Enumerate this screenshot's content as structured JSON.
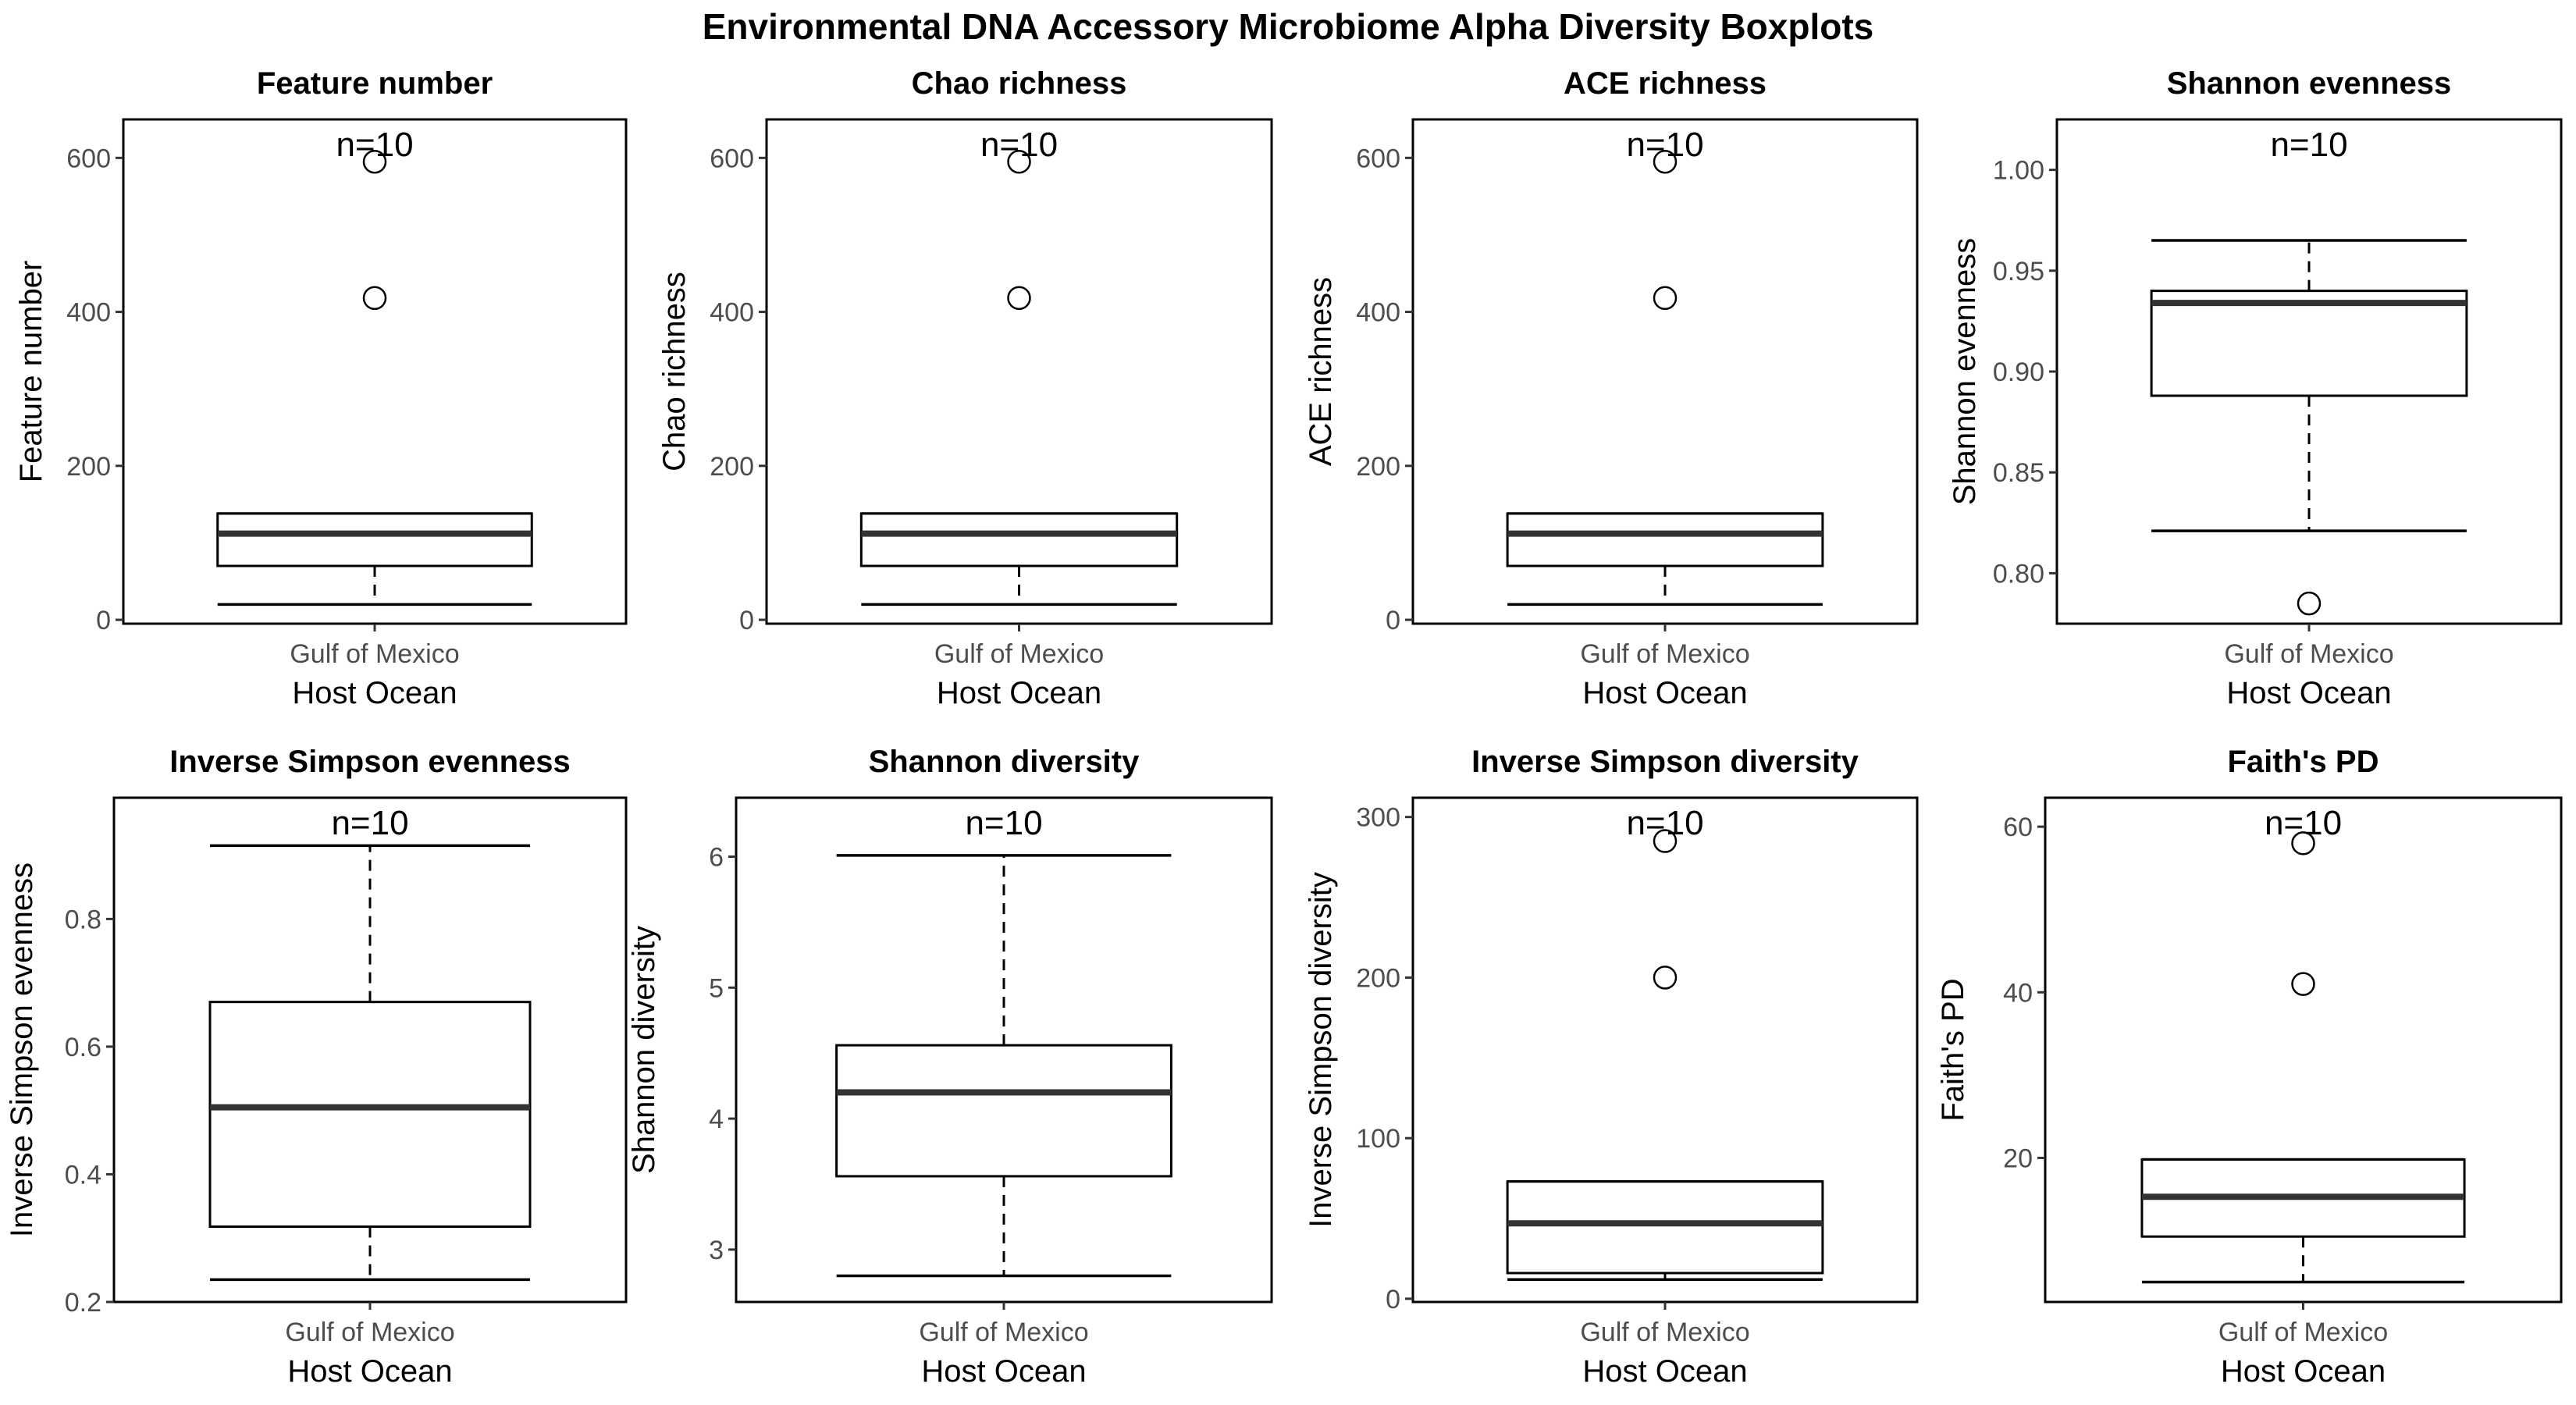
{
  "title": "Environmental DNA Accessory Microbiome Alpha Diversity Boxplots",
  "chart_data": [
    {
      "type": "boxplot",
      "title": "Feature number",
      "xlabel": "Host Ocean",
      "ylabel": "Feature number",
      "categories": [
        "Gulf of Mexico"
      ],
      "n_label": "n=10",
      "ylim": [
        -5,
        650
      ],
      "yticks": [
        0,
        200,
        400,
        600
      ],
      "ytick_labels": [
        "0",
        "200",
        "400",
        "600"
      ],
      "box": {
        "whisker_low": 20,
        "q1": 70,
        "median": 112,
        "q3": 138,
        "whisker_high": 138,
        "outliers": [
          418,
          595
        ]
      }
    },
    {
      "type": "boxplot",
      "title": "Chao richness",
      "xlabel": "Host Ocean",
      "ylabel": "Chao richness",
      "categories": [
        "Gulf of Mexico"
      ],
      "n_label": "n=10",
      "ylim": [
        -5,
        650
      ],
      "yticks": [
        0,
        200,
        400,
        600
      ],
      "ytick_labels": [
        "0",
        "200",
        "400",
        "600"
      ],
      "box": {
        "whisker_low": 20,
        "q1": 70,
        "median": 112,
        "q3": 138,
        "whisker_high": 138,
        "outliers": [
          418,
          595
        ]
      }
    },
    {
      "type": "boxplot",
      "title": "ACE richness",
      "xlabel": "Host Ocean",
      "ylabel": "ACE richness",
      "categories": [
        "Gulf of Mexico"
      ],
      "n_label": "n=10",
      "ylim": [
        -5,
        650
      ],
      "yticks": [
        0,
        200,
        400,
        600
      ],
      "ytick_labels": [
        "0",
        "200",
        "400",
        "600"
      ],
      "box": {
        "whisker_low": 20,
        "q1": 70,
        "median": 112,
        "q3": 138,
        "whisker_high": 138,
        "outliers": [
          418,
          595
        ]
      }
    },
    {
      "type": "boxplot",
      "title": "Shannon evenness",
      "xlabel": "Host Ocean",
      "ylabel": "Shannon evenness",
      "categories": [
        "Gulf of Mexico"
      ],
      "n_label": "n=10",
      "ylim": [
        0.775,
        1.025
      ],
      "yticks": [
        0.8,
        0.85,
        0.9,
        0.95,
        1.0
      ],
      "ytick_labels": [
        "0.80",
        "0.85",
        "0.90",
        "0.95",
        "1.00"
      ],
      "box": {
        "whisker_low": 0.821,
        "q1": 0.888,
        "median": 0.934,
        "q3": 0.94,
        "whisker_high": 0.965,
        "outliers": [
          0.785
        ]
      }
    },
    {
      "type": "boxplot",
      "title": "Inverse Simpson evenness",
      "xlabel": "Host Ocean",
      "ylabel": "Inverse Simpson evenness",
      "categories": [
        "Gulf of Mexico"
      ],
      "n_label": "n=10",
      "ylim": [
        0.2,
        0.99
      ],
      "yticks": [
        0.2,
        0.4,
        0.6,
        0.8
      ],
      "ytick_labels": [
        "0.2",
        "0.4",
        "0.6",
        "0.8"
      ],
      "box": {
        "whisker_low": 0.235,
        "q1": 0.318,
        "median": 0.505,
        "q3": 0.67,
        "whisker_high": 0.915,
        "outliers": []
      }
    },
    {
      "type": "boxplot",
      "title": "Shannon diversity",
      "xlabel": "Host Ocean",
      "ylabel": "Shannon diversity",
      "categories": [
        "Gulf of Mexico"
      ],
      "n_label": "n=10",
      "ylim": [
        2.6,
        6.45
      ],
      "yticks": [
        3,
        4,
        5,
        6
      ],
      "ytick_labels": [
        "3",
        "4",
        "5",
        "6"
      ],
      "box": {
        "whisker_low": 2.8,
        "q1": 3.56,
        "median": 4.2,
        "q3": 4.56,
        "whisker_high": 6.01,
        "outliers": []
      }
    },
    {
      "type": "boxplot",
      "title": "Inverse Simpson diversity",
      "xlabel": "Host Ocean",
      "ylabel": "Inverse Simpson diversity",
      "categories": [
        "Gulf of Mexico"
      ],
      "n_label": "n=10",
      "ylim": [
        -2,
        312
      ],
      "yticks": [
        0,
        100,
        200,
        300
      ],
      "ytick_labels": [
        "0",
        "100",
        "200",
        "300"
      ],
      "box": {
        "whisker_low": 12,
        "q1": 16,
        "median": 47,
        "q3": 73,
        "whisker_high": 73,
        "outliers": [
          200,
          285
        ]
      }
    },
    {
      "type": "boxplot",
      "title": "Faith's PD",
      "xlabel": "Host Ocean",
      "ylabel": "Faith's PD",
      "categories": [
        "Gulf of Mexico"
      ],
      "n_label": "n=10",
      "ylim": [
        2.6,
        63.5
      ],
      "yticks": [
        20,
        40,
        60
      ],
      "ytick_labels": [
        "20",
        "40",
        "60"
      ],
      "box": {
        "whisker_low": 5,
        "q1": 10.5,
        "median": 15.3,
        "q3": 19.8,
        "whisker_high": 19.8,
        "outliers": [
          41,
          58
        ]
      }
    }
  ]
}
